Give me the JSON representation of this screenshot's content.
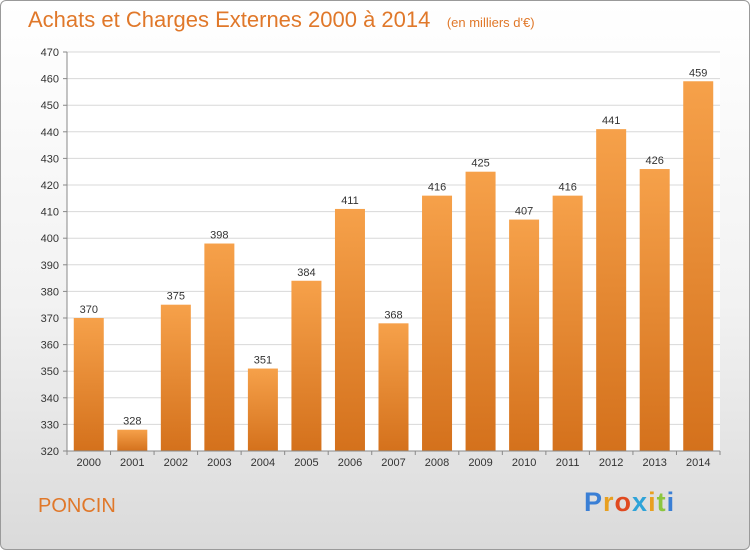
{
  "title": "Achats et Charges Externes 2000 à 2014",
  "unit": "(en milliers d'€)",
  "city": "PONCIN",
  "logo": {
    "letters": [
      "P",
      "r",
      "o",
      "x",
      "i",
      "t",
      "i"
    ],
    "colors": [
      "#3a7fd5",
      "#e8a020",
      "#e04a20",
      "#2ea3d8",
      "#e8a020",
      "#8cc63f",
      "#3a7fd5"
    ]
  },
  "colors": {
    "bar_top": "#f6a14a",
    "bar_bottom": "#d4711c",
    "accent": "#e0782a"
  },
  "chart_data": {
    "type": "bar",
    "categories": [
      "2000",
      "2001",
      "2002",
      "2003",
      "2004",
      "2005",
      "2006",
      "2007",
      "2008",
      "2009",
      "2010",
      "2011",
      "2012",
      "2013",
      "2014"
    ],
    "values": [
      370,
      328,
      375,
      398,
      351,
      384,
      411,
      368,
      416,
      425,
      407,
      416,
      441,
      426,
      459
    ],
    "ylim": [
      320,
      470
    ],
    "yticks": [
      320,
      330,
      340,
      350,
      360,
      370,
      380,
      390,
      400,
      410,
      420,
      430,
      440,
      450,
      460,
      470
    ],
    "grid": true
  }
}
